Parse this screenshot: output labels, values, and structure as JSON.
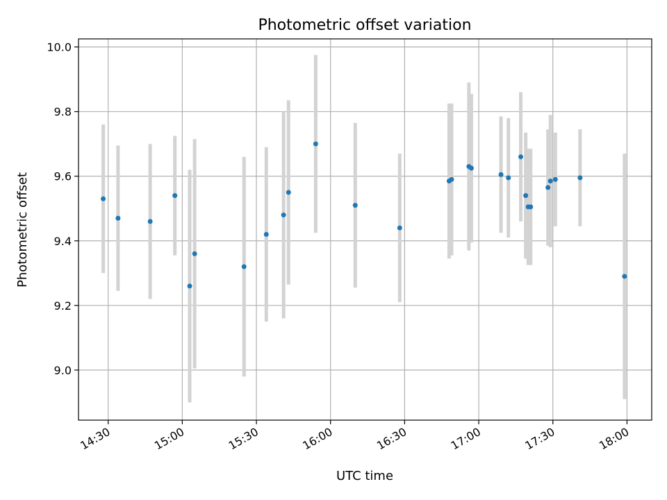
{
  "chart_data": {
    "type": "scatter",
    "title": "Photometric offset variation",
    "xlabel": "UTC time",
    "ylabel": "Photometric offset",
    "x_ticks": [
      "14:30",
      "15:00",
      "15:30",
      "16:00",
      "16:30",
      "17:00",
      "17:30",
      "18:00"
    ],
    "y_ticks": [
      "9.0",
      "9.2",
      "9.4",
      "9.6",
      "9.8",
      "10.0"
    ],
    "xlim": [
      "14:18",
      "18:10"
    ],
    "ylim": [
      8.845,
      10.025
    ],
    "grid": true,
    "error_bar_color": "#d3d3d3",
    "point_color": "#1f77b4",
    "points": [
      {
        "time": "14:28",
        "y": 9.53,
        "err": 0.23
      },
      {
        "time": "14:34",
        "y": 9.47,
        "err": 0.225
      },
      {
        "time": "14:47",
        "y": 9.46,
        "err": 0.24
      },
      {
        "time": "14:57",
        "y": 9.54,
        "err": 0.185
      },
      {
        "time": "15:03",
        "y": 9.26,
        "err": 0.36
      },
      {
        "time": "15:05",
        "y": 9.36,
        "err": 0.355
      },
      {
        "time": "15:25",
        "y": 9.32,
        "err": 0.34
      },
      {
        "time": "15:34",
        "y": 9.42,
        "err": 0.27
      },
      {
        "time": "15:41",
        "y": 9.48,
        "err": 0.32
      },
      {
        "time": "15:43",
        "y": 9.55,
        "err": 0.285
      },
      {
        "time": "15:54",
        "y": 9.7,
        "err": 0.275
      },
      {
        "time": "16:10",
        "y": 9.51,
        "err": 0.255
      },
      {
        "time": "16:28",
        "y": 9.44,
        "err": 0.23
      },
      {
        "time": "16:48",
        "y": 9.585,
        "err": 0.24
      },
      {
        "time": "16:49",
        "y": 9.59,
        "err": 0.235
      },
      {
        "time": "16:56",
        "y": 9.63,
        "err": 0.26
      },
      {
        "time": "16:57",
        "y": 9.625,
        "err": 0.23
      },
      {
        "time": "17:09",
        "y": 9.605,
        "err": 0.18
      },
      {
        "time": "17:12",
        "y": 9.595,
        "err": 0.185
      },
      {
        "time": "17:17",
        "y": 9.66,
        "err": 0.2
      },
      {
        "time": "17:19",
        "y": 9.54,
        "err": 0.195
      },
      {
        "time": "17:20",
        "y": 9.505,
        "err": 0.18
      },
      {
        "time": "17:21",
        "y": 9.505,
        "err": 0.18
      },
      {
        "time": "17:28",
        "y": 9.565,
        "err": 0.18
      },
      {
        "time": "17:29",
        "y": 9.585,
        "err": 0.205
      },
      {
        "time": "17:31",
        "y": 9.59,
        "err": 0.145
      },
      {
        "time": "17:41",
        "y": 9.595,
        "err": 0.15
      },
      {
        "time": "17:59",
        "y": 9.29,
        "err": 0.38
      }
    ]
  }
}
